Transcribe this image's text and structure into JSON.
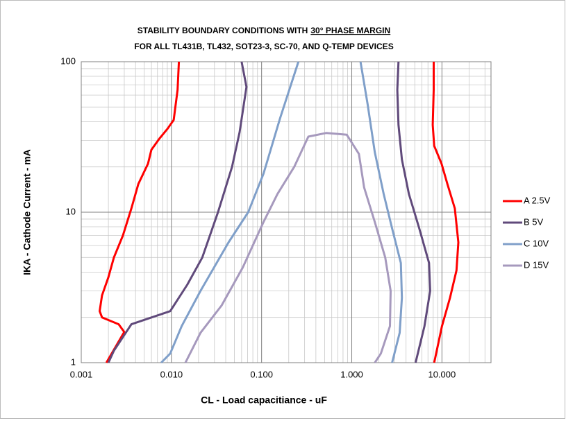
{
  "chart_data": {
    "type": "line",
    "title": [
      "STABILITY BOUNDARY CONDITIONS WITH",
      "30° PHASE MARGIN"
    ],
    "subtitle": "FOR ALL TL431B, TL432, SOT23-3, SC-70, AND Q-TEMP DEVICES",
    "x_label": "CL - Load capacitiance - uF",
    "y_label": "IKA - Cathode Current - mA",
    "xlog": true,
    "ylog": true,
    "grid": true,
    "minor_grid": true,
    "legend": "right",
    "xlim": [
      0.001,
      35
    ],
    "ylim": [
      1,
      100
    ],
    "xticks": [
      0.001,
      {
        "value": 0.01,
        "label": "0.010"
      },
      {
        "value": 0.1,
        "label": "0.100"
      },
      {
        "value": 1,
        "label": "1.000"
      },
      {
        "value": 10,
        "label": "10.000"
      }
    ],
    "yticks": [
      1,
      10,
      100
    ],
    "series": [
      {
        "name": "A 2.5V",
        "color": "#ff0000",
        "curves": [
          {
            "x": [
              0.0019,
              0.003,
              0.0026,
              0.0017,
              0.0016,
              0.0017,
              0.002,
              0.0023,
              0.0029,
              0.0036,
              0.0043,
              0.0055,
              0.006,
              0.0074,
              0.0091,
              0.0106,
              0.0117,
              0.0121
            ],
            "values": [
              1,
              1.6,
              1.8,
              2,
              2.2,
              2.8,
              3.7,
              5,
              7,
              10.6,
              15.4,
              21,
              26,
              31,
              36,
              41,
              65,
              100
            ]
          },
          {
            "x": [
              8.2,
              10,
              12.3,
              14.5,
              15.2,
              13.9,
              11.5,
              9.9,
              8.2,
              7.9,
              8.1,
              8.1
            ],
            "values": [
              1,
              1.75,
              2.7,
              4.1,
              6.3,
              10.6,
              15.4,
              21,
              27.6,
              38,
              65,
              100
            ]
          }
        ]
      },
      {
        "name": "B 5V",
        "color": "#604a7b",
        "curves": [
          {
            "x": [
              0.002,
              0.0023,
              0.0036,
              0.0097,
              0.015,
              0.022,
              0.033,
              0.047,
              0.057,
              0.068,
              0.06
            ],
            "values": [
              1,
              1.2,
              1.8,
              2.2,
              3.3,
              5,
              10.1,
              20,
              34,
              68,
              100
            ]
          },
          {
            "x": [
              5.1,
              6.4,
              7.4,
              7.2,
              5.6,
              4.3,
              3.6,
              3.3,
              3.2,
              3.3
            ],
            "values": [
              1,
              1.75,
              3,
              4.6,
              7.8,
              13.2,
              22.4,
              38,
              65,
              100
            ]
          }
        ]
      },
      {
        "name": "C 10V",
        "color": "#7f9fc9",
        "curves": [
          {
            "x": [
              0.0077,
              0.0097,
              0.013,
              0.021,
              0.043,
              0.071,
              0.105,
              0.16,
              0.256
            ],
            "values": [
              1,
              1.15,
              1.75,
              3,
              6.3,
              10,
              18,
              42,
              100
            ]
          },
          {
            "x": [
              2.8,
              3.4,
              3.6,
              3.5,
              2.8,
              2.26,
              1.8,
              1.5,
              1.25
            ],
            "values": [
              1,
              1.58,
              2.7,
              4.6,
              7.8,
              13.2,
              25,
              52,
              100
            ]
          }
        ]
      },
      {
        "name": "D 15V",
        "color": "#a699bd",
        "curves": [
          {
            "x": [
              0.0143,
              0.021,
              0.036,
              0.062,
              0.105,
              0.15,
              0.23,
              0.33,
              0.52,
              0.88,
              1.2,
              1.37,
              1.8,
              2.35,
              2.7,
              2.65,
              2.1,
              1.8
            ],
            "values": [
              1,
              1.58,
              2.4,
              4.3,
              8.6,
              13.2,
              20,
              31.8,
              33.6,
              32.7,
              24.4,
              14.6,
              8.6,
              5,
              3,
              1.75,
              1.15,
              1
            ]
          }
        ]
      }
    ]
  }
}
